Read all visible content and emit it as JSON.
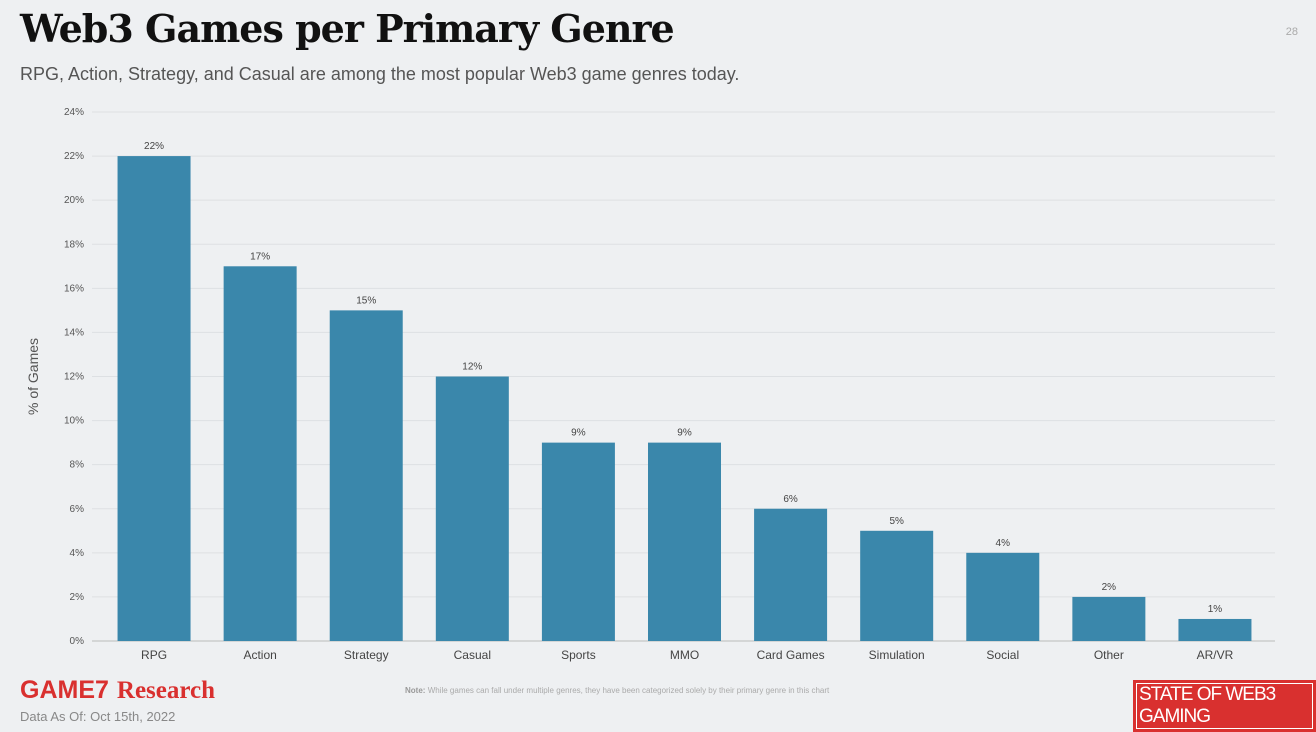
{
  "header": {
    "title": "Web3 Games per Primary Genre",
    "subtitle": "RPG, Action, Strategy, and Casual are among the most popular Web3 game genres today.",
    "page_number": "28"
  },
  "footer": {
    "logo_brand": "GAME7",
    "logo_suffix": "Research",
    "note_label": "Note:",
    "note_text": "While games can fall under multiple genres, they have been categorized solely by their primary genre in this chart",
    "date": "Data As Of: Oct 15th, 2022",
    "badge": "STATE OF WEB3 GAMING"
  },
  "chart_data": {
    "type": "bar",
    "categories": [
      "RPG",
      "Action",
      "Strategy",
      "Casual",
      "Sports",
      "MMO",
      "Card Games",
      "Simulation",
      "Social",
      "Other",
      "AR/VR"
    ],
    "values": [
      22,
      17,
      15,
      12,
      9,
      9,
      6,
      5,
      4,
      2,
      1
    ],
    "data_labels": [
      "22%",
      "17%",
      "15%",
      "12%",
      "9%",
      "9%",
      "6%",
      "5%",
      "4%",
      "2%",
      "1%"
    ],
    "ylabel": "% of Games",
    "ylim": [
      0,
      24
    ],
    "yticks": [
      "0%",
      "2%",
      "4%",
      "6%",
      "8%",
      "10%",
      "12%",
      "14%",
      "16%",
      "18%",
      "20%",
      "22%",
      "24%"
    ],
    "grid": true,
    "bar_color": "#3a87ab"
  }
}
